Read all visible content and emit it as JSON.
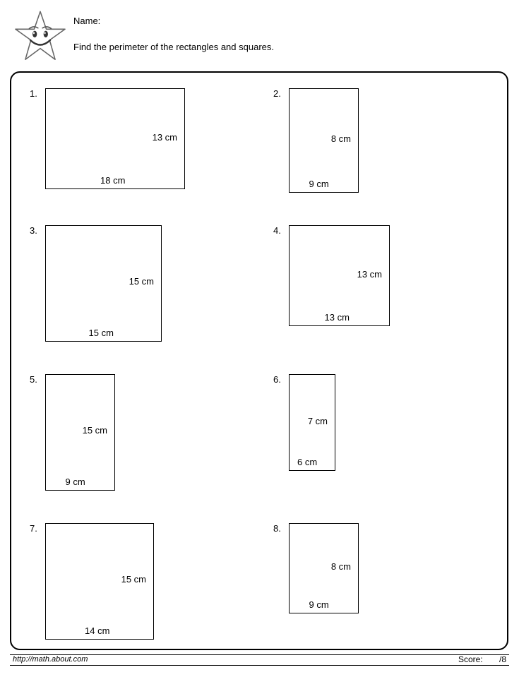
{
  "header": {
    "name_label": "Name:",
    "instruction": "Find the perimeter of the rectangles and squares."
  },
  "scale": 11,
  "problems": [
    {
      "n": "1.",
      "w": 18,
      "h": 13,
      "wl": "18 cm",
      "hl": "13 cm"
    },
    {
      "n": "2.",
      "w": 9,
      "h": 8,
      "wl": "9 cm",
      "hl": "8 cm",
      "extra_h": 60
    },
    {
      "n": "3.",
      "w": 15,
      "h": 15,
      "wl": "15 cm",
      "hl": "15 cm"
    },
    {
      "n": "4.",
      "w": 13,
      "h": 13,
      "wl": "13 cm",
      "hl": "13 cm"
    },
    {
      "n": "5.",
      "w": 9,
      "h": 15,
      "wl": "9 cm",
      "hl": "15 cm"
    },
    {
      "n": "6.",
      "w": 6,
      "h": 7,
      "wl": "6 cm",
      "hl": "7 cm",
      "extra_h": 60
    },
    {
      "n": "7.",
      "w": 14,
      "h": 15,
      "wl": "14 cm",
      "hl": "15 cm"
    },
    {
      "n": "8.",
      "w": 9,
      "h": 8,
      "wl": "9 cm",
      "hl": "8 cm",
      "extra_h": 40
    }
  ],
  "footer": {
    "url": "http://math.about.com",
    "score_label": "Score:",
    "score_out_of": "/8"
  },
  "colors": {
    "border": "#000000",
    "bg": "#ffffff",
    "text": "#000000"
  }
}
